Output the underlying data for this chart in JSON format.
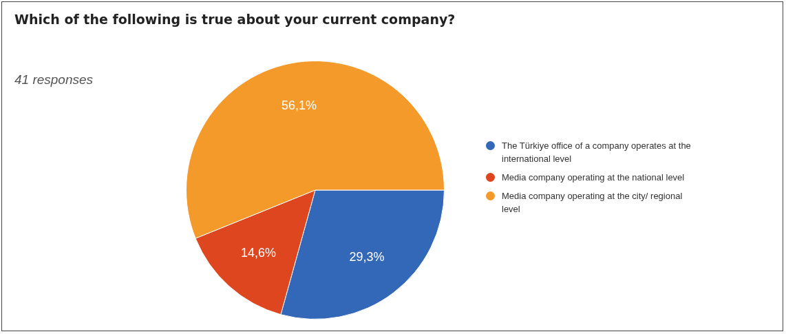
{
  "chart_data": {
    "type": "pie",
    "title": "Which of the following is true about your current company?",
    "subtitle": "41 responses",
    "categories": [
      "The Türkiye office of a company operates at the international level",
      "Media company operating at the national level",
      "Media company operating at the city/ regional level"
    ],
    "values": [
      29.3,
      14.6,
      56.1
    ],
    "colors": [
      "#3367b8",
      "#de4620",
      "#f49a2b"
    ],
    "value_labels": [
      "29,3%",
      "14,6%",
      "56,1%"
    ],
    "legend": "right"
  }
}
